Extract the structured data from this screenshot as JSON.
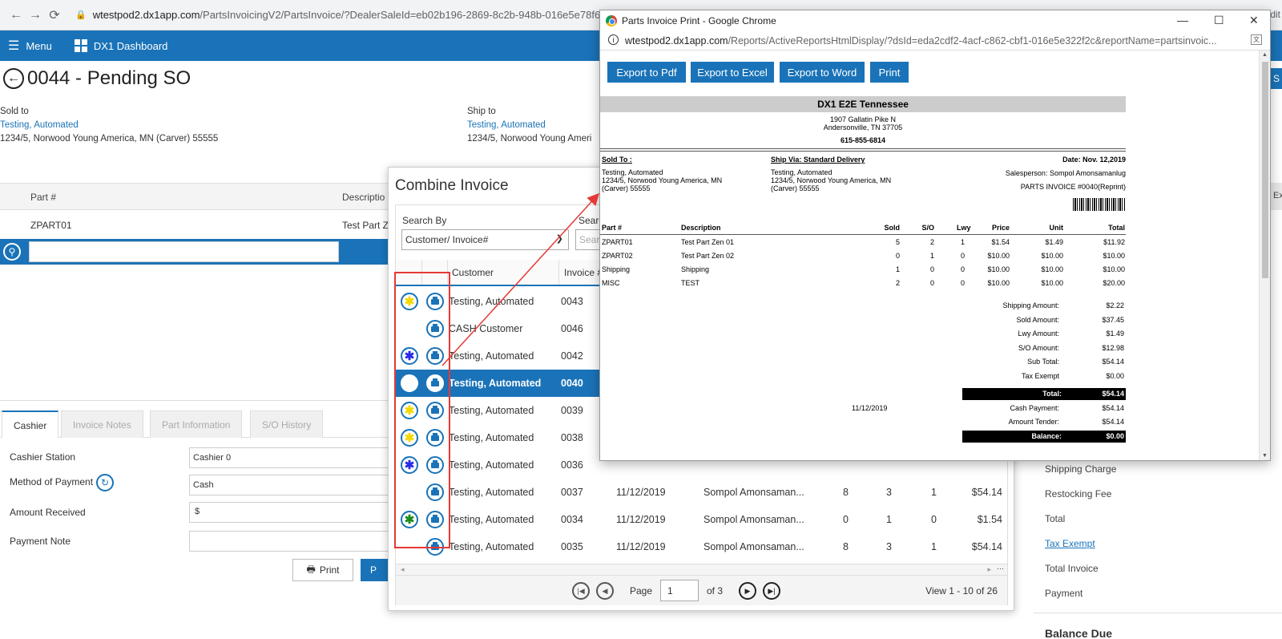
{
  "browser": {
    "url_host": "wtestpod2.dx1app.com",
    "url_path": "/PartsInvoicingV2/PartsInvoice/?DealerSaleId=eb02b196-2869-8c2b-948b-016e5e78f62",
    "edge_text": "dit"
  },
  "navbar": {
    "menu_label": "Menu",
    "dashboard_label": "DX1 Dashboard"
  },
  "page": {
    "title": "0044 - Pending SO"
  },
  "sold_to": {
    "label": "Sold to",
    "name": "Testing, Automated",
    "address": "1234/5, Norwood Young America, MN (Carver) 55555"
  },
  "ship_to": {
    "label": "Ship to",
    "name": "Testing, Automated",
    "address": "1234/5, Norwood Young Ameri"
  },
  "parts_grid": {
    "columns": [
      "Part #",
      "Descriptio"
    ],
    "rows": [
      {
        "part": "ZPART01",
        "description": "Test Part Z"
      }
    ]
  },
  "tabs": [
    "Cashier",
    "Invoice Notes",
    "Part Information",
    "S/O History"
  ],
  "cashier_form": {
    "station_label": "Cashier Station",
    "station_value": "Cashier 0",
    "method_label": "Method of Payment",
    "method_value": "Cash",
    "amount_label": "Amount Received",
    "amount_prefix": "$",
    "note_label": "Payment Note",
    "print_label": "Print",
    "confirm_label": "P"
  },
  "right_summary": {
    "labels": [
      "Shipping Charge",
      "Restocking Fee",
      "Total",
      "Tax Exempt",
      "Total Invoice",
      "Payment"
    ],
    "balance_due": "Balance Due",
    "edge_s": "S",
    "edge_ex": "Ex"
  },
  "combine_invoice": {
    "title": "Combine Invoice",
    "search_by_label": "Search By",
    "search_by_value": "Customer/ Invoice#",
    "search2_label": "Search",
    "search2_placeholder": "Searc",
    "columns": [
      "Customer",
      "Invoice #"
    ],
    "rows": [
      {
        "status": "yellow",
        "customer": "Testing, Automated",
        "invoice": "0043",
        "date": "",
        "salesperson": "",
        "sold": "",
        "so": "",
        "lwy": "",
        "total": ""
      },
      {
        "status": "none",
        "customer": "CASH Customer",
        "invoice": "0046",
        "date": "",
        "salesperson": "",
        "sold": "",
        "so": "",
        "lwy": "",
        "total": ""
      },
      {
        "status": "blue",
        "customer": "Testing, Automated",
        "invoice": "0042",
        "date": "",
        "salesperson": "",
        "sold": "",
        "so": "",
        "lwy": "",
        "total": ""
      },
      {
        "status": "blank",
        "customer": "Testing, Automated",
        "invoice": "0040",
        "date": "",
        "salesperson": "",
        "sold": "",
        "so": "",
        "lwy": "",
        "total": ""
      },
      {
        "status": "yellow",
        "customer": "Testing, Automated",
        "invoice": "0039",
        "date": "",
        "salesperson": "",
        "sold": "",
        "so": "",
        "lwy": "",
        "total": ""
      },
      {
        "status": "yellow",
        "customer": "Testing, Automated",
        "invoice": "0038",
        "date": "",
        "salesperson": "",
        "sold": "",
        "so": "",
        "lwy": "",
        "total": ""
      },
      {
        "status": "blue",
        "customer": "Testing, Automated",
        "invoice": "0036",
        "date": "",
        "salesperson": "",
        "sold": "",
        "so": "",
        "lwy": "",
        "total": ""
      },
      {
        "status": "none",
        "customer": "Testing, Automated",
        "invoice": "0037",
        "date": "11/12/2019",
        "salesperson": "Sompol Amonsaman...",
        "sold": "8",
        "so": "3",
        "lwy": "1",
        "total": "$54.14"
      },
      {
        "status": "green",
        "customer": "Testing, Automated",
        "invoice": "0034",
        "date": "11/12/2019",
        "salesperson": "Sompol Amonsaman...",
        "sold": "0",
        "so": "1",
        "lwy": "0",
        "total": "$1.54"
      },
      {
        "status": "none",
        "customer": "Testing, Automated",
        "invoice": "0035",
        "date": "11/12/2019",
        "salesperson": "Sompol Amonsaman...",
        "sold": "8",
        "so": "3",
        "lwy": "1",
        "total": "$54.14"
      }
    ],
    "selected_index": 3,
    "pager": {
      "page_label": "Page",
      "page_value": "1",
      "of_label": "of 3",
      "view_label": "View 1 - 10 of 26"
    }
  },
  "popup": {
    "window_title": "Parts Invoice Print - Google Chrome",
    "url_host": "wtestpod2.dx1app.com",
    "url_path": "/Reports/ActiveReportsHtmlDisplay/?dsId=eda2cdf2-4acf-c862-cbf1-016e5e322f2c&reportName=partsinvoic...",
    "buttons": [
      "Export to Pdf",
      "Export to Excel",
      "Export to Word",
      "Print"
    ],
    "report": {
      "dealer_name": "DX1 E2E Tennessee",
      "dealer_street": "1907 Gallatin Pike N",
      "dealer_city": "Andersonville, TN 37705",
      "dealer_phone": "615-855-6814",
      "sold_to_label": "Sold To :",
      "sold_to_name": "Testing, Automated",
      "sold_to_line1": "1234/5, Norwood Young America, MN",
      "sold_to_line2": "(Carver) 55555",
      "ship_via_label": "Ship Via: Standard Delivery",
      "ship_name": "Testing, Automated",
      "ship_line1": "1234/5, Norwood Young America, MN",
      "ship_line2": "(Carver) 55555",
      "date": "Date: Nov. 12,2019",
      "salesperson": "Salesperson: Sompol Amonsamanlug",
      "invoice_no": "PARTS INVOICE #0040(Reprint)",
      "columns": [
        "Part #",
        "Description",
        "Sold",
        "S/O",
        "Lwy",
        "Price",
        "Unit",
        "Total"
      ],
      "lines": [
        {
          "part": "ZPART01",
          "desc": "Test Part Zen 01",
          "sold": "5",
          "so": "2",
          "lwy": "1",
          "price": "$1.54",
          "unit": "$1.49",
          "total": "$11.92"
        },
        {
          "part": "ZPART02",
          "desc": "Test Part Zen 02",
          "sold": "0",
          "so": "1",
          "lwy": "0",
          "price": "$10.00",
          "unit": "$10.00",
          "total": "$10.00"
        },
        {
          "part": "Shipping",
          "desc": "Shipping",
          "sold": "1",
          "so": "0",
          "lwy": "0",
          "price": "$10.00",
          "unit": "$10.00",
          "total": "$10.00"
        },
        {
          "part": "MISC",
          "desc": "TEST",
          "sold": "2",
          "so": "0",
          "lwy": "0",
          "price": "$10.00",
          "unit": "$10.00",
          "total": "$20.00"
        }
      ],
      "totals": [
        {
          "label": "Shipping Amount:",
          "value": "$2.22"
        },
        {
          "label": "Sold Amount:",
          "value": "$37.45"
        },
        {
          "label": "Lwy Amount:",
          "value": "$1.49"
        },
        {
          "label": "S/O Amount:",
          "value": "$12.98"
        },
        {
          "label": "Sub Total:",
          "value": "$54.14"
        },
        {
          "label": "Tax Exempt",
          "value": "$0.00"
        }
      ],
      "total_label": "Total:",
      "total_value": "$54.14",
      "payment_date": "11/12/2019",
      "cash_label": "Cash Payment:",
      "cash_value": "$54.14",
      "tender_label": "Amount Tender:",
      "tender_value": "$54.14",
      "balance_label": "Balance:",
      "balance_value": "$0.00"
    }
  },
  "colors": {
    "primary": "#1a73b8",
    "annotation": "#e53935",
    "star_yellow": "#f5d800",
    "star_blue": "#2a2ae8",
    "star_green": "#1a8c1a"
  }
}
